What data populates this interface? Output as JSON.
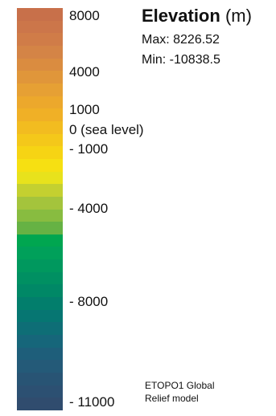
{
  "legend": {
    "title": "Elevation",
    "unit": "(m)",
    "max_label": "Max: 8226.52",
    "min_label": "Min: -10838.5",
    "source_line1": "ETOPO1 Global",
    "source_line2": "Relief model",
    "ticks": [
      "8000",
      "4000",
      "1000",
      "0 (sea level)",
      "- 1000",
      "- 4000",
      "- 8000",
      "- 11000"
    ],
    "colors": [
      "#c8704a",
      "#cc764a",
      "#d07c48",
      "#d48446",
      "#da8c40",
      "#e0963a",
      "#e6a034",
      "#eca82c",
      "#f0b026",
      "#f2bc20",
      "#f4c81a",
      "#f6d414",
      "#f6e012",
      "#e8e21c",
      "#c4d030",
      "#a4c43c",
      "#88bc40",
      "#66b244",
      "#00a650",
      "#00a05a",
      "#00985e",
      "#009062",
      "#008866",
      "#027e6c",
      "#067672",
      "#0e6e76",
      "#16667a",
      "#1e5e7a",
      "#245a78",
      "#285474",
      "#2c5072",
      "#304c6e"
    ]
  }
}
